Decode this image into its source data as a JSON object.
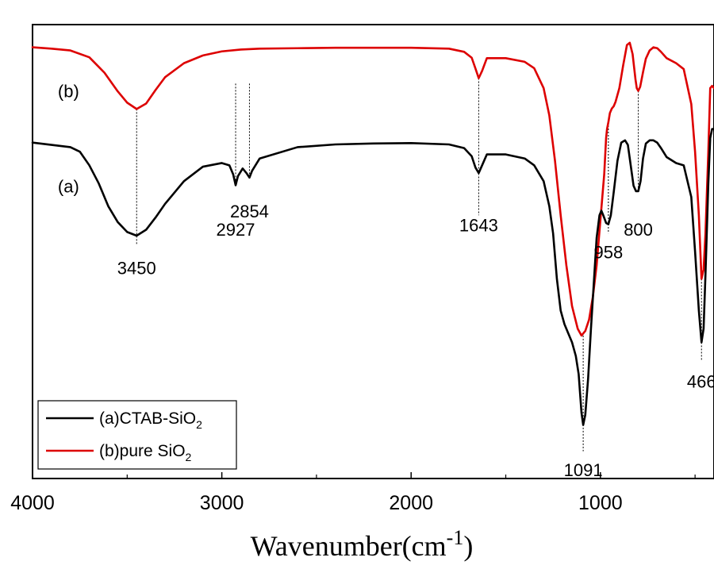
{
  "chart_data": {
    "type": "line",
    "title": "",
    "xlabel": "Wavenumber(cm",
    "xlabel_sup": "-1",
    "xlabel_close": ")",
    "ylabel": "",
    "xlim": [
      4000,
      400
    ],
    "ylim": [
      0,
      100
    ],
    "x_reversed": true,
    "grid": false,
    "x_ticks": [
      {
        "value": 4000,
        "label": "4000"
      },
      {
        "value": 3000,
        "label": "3000"
      },
      {
        "value": 2000,
        "label": "2000"
      },
      {
        "value": 1000,
        "label": "1000"
      }
    ],
    "legend": {
      "position": "bottom-left",
      "entries": [
        {
          "series": "a",
          "text": "(a)CTAB-SiO",
          "sub": "2"
        },
        {
          "series": "b",
          "text": "(b)pure SiO",
          "sub": "2"
        }
      ]
    },
    "series": [
      {
        "id": "b",
        "name": "(b)pure SiO2",
        "curve_label": "(b)",
        "curve_label_x": 3810,
        "curve_label_y": 84,
        "color": "#dd0000",
        "x": [
          4000,
          3900,
          3800,
          3700,
          3620,
          3550,
          3500,
          3450,
          3400,
          3350,
          3300,
          3200,
          3100,
          3000,
          2900,
          2800,
          2600,
          2400,
          2200,
          2000,
          1800,
          1720,
          1680,
          1660,
          1643,
          1625,
          1600,
          1500,
          1400,
          1350,
          1300,
          1270,
          1240,
          1210,
          1180,
          1150,
          1120,
          1100,
          1080,
          1060,
          1040,
          1020,
          1000,
          980,
          970,
          965,
          958,
          950,
          940,
          930,
          920,
          900,
          880,
          860,
          845,
          830,
          815,
          808,
          800,
          790,
          775,
          760,
          740,
          720,
          700,
          680,
          650,
          600,
          560,
          520,
          500,
          480,
          466,
          455,
          445,
          430,
          420,
          410,
          400
        ],
        "y": [
          95,
          94.7,
          94.3,
          92.8,
          89.4,
          85.3,
          82.8,
          81.4,
          82.6,
          85.6,
          88.4,
          91.5,
          93.2,
          94.1,
          94.5,
          94.7,
          94.8,
          94.9,
          94.9,
          94.9,
          94.7,
          94.0,
          92.7,
          90.3,
          88.2,
          89.8,
          92.6,
          92.6,
          91.8,
          90.4,
          86.0,
          80.0,
          70.0,
          58.0,
          47.0,
          38.0,
          33.0,
          31.5,
          32.5,
          35.0,
          40.0,
          47.0,
          57.0,
          67.0,
          75.0,
          77.0,
          78.5,
          80.5,
          81.5,
          82.0,
          83.0,
          86.0,
          91.0,
          95.5,
          96.0,
          93.5,
          88.0,
          86.0,
          85.4,
          86.3,
          89.5,
          92.5,
          94.3,
          95.0,
          94.8,
          94.0,
          92.6,
          91.5,
          90.2,
          82.5,
          72.0,
          58.0,
          44.0,
          46.0,
          54.0,
          72.0,
          86.0,
          86.5,
          86.0
        ]
      },
      {
        "id": "a",
        "name": "(a)CTAB-SiO2",
        "curve_label": "(a)",
        "curve_label_x": 3810,
        "curve_label_y": 63,
        "color": "#000000",
        "x": [
          4000,
          3900,
          3800,
          3750,
          3700,
          3650,
          3600,
          3550,
          3500,
          3450,
          3400,
          3350,
          3300,
          3200,
          3100,
          3000,
          2960,
          2940,
          2927,
          2915,
          2890,
          2870,
          2854,
          2840,
          2800,
          2600,
          2400,
          2200,
          2000,
          1800,
          1720,
          1680,
          1660,
          1643,
          1625,
          1600,
          1500,
          1400,
          1350,
          1300,
          1270,
          1250,
          1230,
          1210,
          1190,
          1170,
          1150,
          1130,
          1115,
          1100,
          1091,
          1080,
          1065,
          1050,
          1035,
          1020,
          1005,
          995,
          985,
          970,
          958,
          945,
          930,
          910,
          890,
          870,
          855,
          840,
          825,
          812,
          800,
          788,
          775,
          760,
          740,
          720,
          700,
          680,
          650,
          600,
          560,
          520,
          500,
          480,
          466,
          455,
          445,
          430,
          420,
          410,
          400
        ],
        "y": [
          74,
          73.5,
          73,
          72,
          69,
          65,
          60,
          56.5,
          54.3,
          53.5,
          54.8,
          57.5,
          60.5,
          65.5,
          68.7,
          69.5,
          69.0,
          67.0,
          64.6,
          66.6,
          68.3,
          67.3,
          66.3,
          67.8,
          70.5,
          73.0,
          73.6,
          73.8,
          73.9,
          73.6,
          72.8,
          71.0,
          68.5,
          67.3,
          69.0,
          71.4,
          71.4,
          70.5,
          69.0,
          65.5,
          60.0,
          54.0,
          44.0,
          37.0,
          34.0,
          32.0,
          30.0,
          27.0,
          23.0,
          14.5,
          11.8,
          14.0,
          22.0,
          33.0,
          43.0,
          53.0,
          58.0,
          59.0,
          58.0,
          56.3,
          56.0,
          58.0,
          63.0,
          70.0,
          74.0,
          74.5,
          73.5,
          69.0,
          64.5,
          63.3,
          63.3,
          65.5,
          70.5,
          73.8,
          74.5,
          74.5,
          74.0,
          72.8,
          70.8,
          69.5,
          69.0,
          62.0,
          50.0,
          37.0,
          30.0,
          33.0,
          45.0,
          65.0,
          75.0,
          77.0,
          77.0
        ]
      }
    ],
    "peak_markers": [
      {
        "x": 3450,
        "y_from": 81.4,
        "y_to": 51.5,
        "label": "3450",
        "label_y": 45
      },
      {
        "x": 2927,
        "y_from": 87.0,
        "y_to": 64.6,
        "label": "2927",
        "label_y": 53.5
      },
      {
        "x": 2854,
        "y_from": 87.0,
        "y_to": 66.3,
        "label": "2854",
        "label_y": 57.5
      },
      {
        "x": 1643,
        "y_from": 88.2,
        "y_to": 58.0,
        "label": "1643",
        "label_y": 54.5
      },
      {
        "x": 1091,
        "y_from": 31.5,
        "y_to": 6.0,
        "label": "1091",
        "label_y": 0.5
      },
      {
        "x": 958,
        "y_from": 78.5,
        "y_to": 54.0,
        "label": "958",
        "label_y": 48.5
      },
      {
        "x": 800,
        "y_from": 85.4,
        "y_to": 63.3,
        "label": "800",
        "label_y": 53.5
      },
      {
        "x": 466,
        "y_from": 44.0,
        "y_to": 26.0,
        "label": "466",
        "label_y": 20.0
      }
    ]
  }
}
